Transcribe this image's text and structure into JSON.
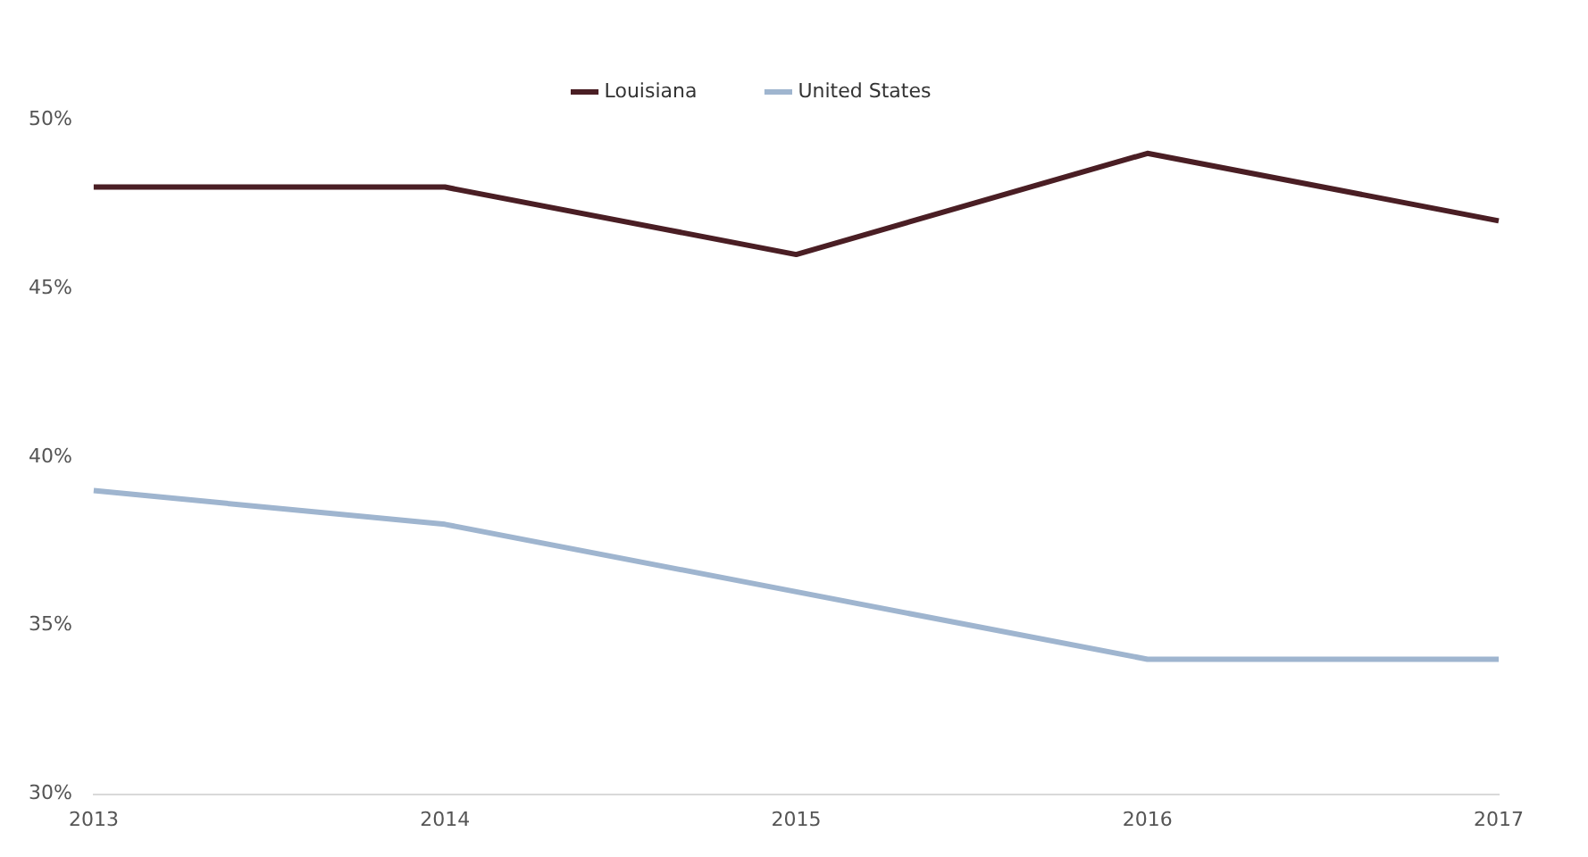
{
  "chart_data": {
    "type": "line",
    "categories": [
      "2013",
      "2014",
      "2015",
      "2016",
      "2017"
    ],
    "series": [
      {
        "name": "Louisiana",
        "color": "#4a1e24",
        "values": [
          48,
          48,
          46,
          49,
          47
        ]
      },
      {
        "name": "United States",
        "color": "#9fb5cf",
        "values": [
          39,
          38,
          36,
          34,
          34
        ]
      }
    ],
    "ylim": [
      30,
      50
    ],
    "yticks": [
      {
        "value": 30,
        "label": "30%"
      },
      {
        "value": 35,
        "label": "35%"
      },
      {
        "value": 40,
        "label": "40%"
      },
      {
        "value": 45,
        "label": "45%"
      },
      {
        "value": 50,
        "label": "50%"
      }
    ],
    "grid": false,
    "legend": "top",
    "marker": "none",
    "line_style": "solid"
  }
}
